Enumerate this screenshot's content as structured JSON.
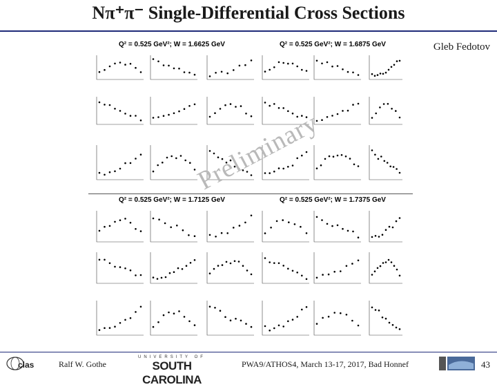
{
  "slide": {
    "title": "Nπ⁺π⁻ Single-Differential Cross Sections",
    "author": "Gleb Fedotov",
    "watermark": "Preliminary",
    "footer": {
      "presenter": "Ralf W. Gothe",
      "conference": "PWA9/ATHOS4, March 13-17, 2017, Bad Honnef",
      "page": "43"
    },
    "logos": {
      "usc_small": "UNIVERSITY OF",
      "usc_big": "SOUTH CAROLINA"
    }
  },
  "quadrants": [
    {
      "label": "Q² = 0.525 GeV²; W = 1.6625 GeV"
    },
    {
      "label": "Q² = 0.525 GeV²; W = 1.6875 GeV"
    },
    {
      "label": "Q² = 0.525 GeV²; W = 1.7125 GeV"
    },
    {
      "label": "Q² = 0.525 GeV²; W = 1.7375 GeV"
    }
  ],
  "colors": {
    "accent": "#1e2a78",
    "watermark": "#b9b9b9"
  }
}
